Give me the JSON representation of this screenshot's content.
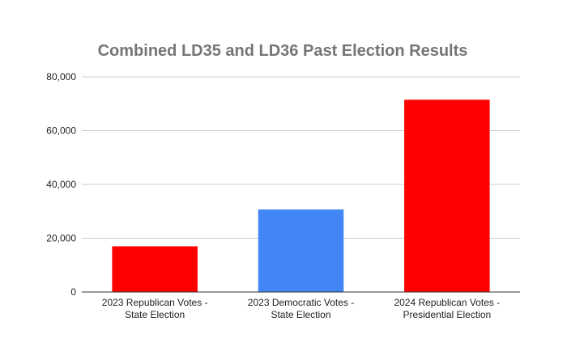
{
  "chart_data": {
    "type": "bar",
    "title": "Combined LD35 and LD36 Past Election Results",
    "xlabel": "",
    "ylabel": "",
    "ylim": [
      0,
      80000
    ],
    "yticks": [
      0,
      20000,
      40000,
      60000,
      80000
    ],
    "ytick_labels": [
      "0",
      "20,000",
      "40,000",
      "60,000",
      "80,000"
    ],
    "grid": true,
    "legend": "none",
    "categories": [
      [
        "2023 Republican Votes -",
        "State Election"
      ],
      [
        "2023 Democratic Votes -",
        "State Election"
      ],
      [
        "2024 Republican Votes -",
        "Presidential Election"
      ]
    ],
    "values": [
      17000,
      30700,
      71500
    ],
    "colors": [
      "#ff0000",
      "#4285f4",
      "#ff0000"
    ]
  }
}
